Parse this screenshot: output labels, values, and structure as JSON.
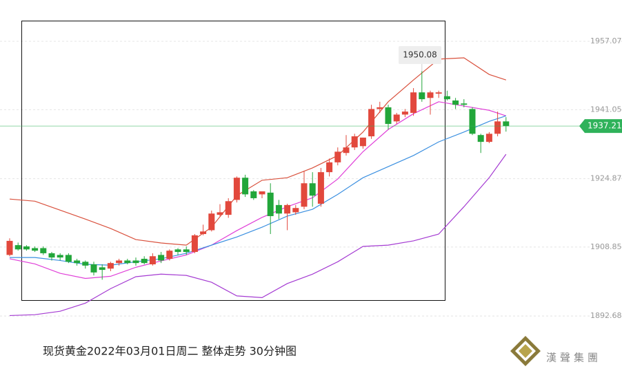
{
  "chart_data": {
    "type": "candlestick",
    "caption": "现货黄金2022年03月01日周二 整体走势  30分钟图",
    "logo_text": "漢聲集團",
    "categories": [
      null,
      null,
      null,
      null,
      null,
      null,
      null,
      null,
      null,
      null,
      null,
      null,
      null,
      null,
      null,
      null,
      null,
      null,
      null,
      null,
      null,
      null,
      null,
      null,
      null,
      null,
      null,
      null,
      null,
      null,
      null,
      null,
      null,
      null,
      null,
      null,
      null,
      null,
      null,
      null,
      null,
      null,
      null,
      null,
      null,
      null,
      null,
      null,
      null,
      null,
      null,
      null,
      null,
      null,
      null,
      null,
      null,
      null,
      null,
      null
    ],
    "open": [
      1907.0,
      1909.3,
      1909.0,
      1908.6,
      1908.6,
      1907.4,
      1907.0,
      1907.0,
      1905.7,
      1905.4,
      1904.8,
      1904.1,
      1903.8,
      1905.1,
      1905.7,
      1905.7,
      1906.1,
      1904.8,
      1907.0,
      1906.1,
      1908.3,
      1908.3,
      1907.7,
      1911.9,
      1912.8,
      1916.4,
      1916.4,
      1919.9,
      1925.1,
      1921.9,
      1921.2,
      1921.6,
      1918.7,
      1916.7,
      1917.0,
      1918.3,
      1923.8,
      1919.0,
      1926.4,
      1928.7,
      1930.9,
      1932.2,
      1932.5,
      1934.8,
      1941.2,
      1941.6,
      1938.3,
      1939.9,
      1940.3,
      1945.1,
      1943.8,
      1944.8,
      1944.2,
      1943.2,
      1942.5,
      1941.2,
      1935.1,
      1933.5,
      1935.4,
      1938.3
    ],
    "high": [
      1910.9,
      1909.9,
      1909.3,
      1909.0,
      1909.0,
      1907.7,
      1907.4,
      1907.4,
      1906.1,
      1905.7,
      1905.4,
      1904.8,
      1905.4,
      1906.1,
      1906.1,
      1906.4,
      1906.7,
      1907.4,
      1907.7,
      1908.3,
      1908.6,
      1909.0,
      1911.9,
      1914.1,
      1917.4,
      1918.9,
      1920.3,
      1925.4,
      1925.8,
      1922.2,
      1921.9,
      1923.8,
      1919.9,
      1919.0,
      1918.7,
      1926.7,
      1926.4,
      1927.4,
      1929.6,
      1932.2,
      1935.1,
      1935.4,
      1934.5,
      1942.2,
      1942.9,
      1942.2,
      1940.3,
      1941.2,
      1946.1,
      1950.08,
      1945.5,
      1945.5,
      1945.5,
      1943.8,
      1943.5,
      1941.6,
      1935.4,
      1935.8,
      1940.6,
      1939.3
    ],
    "low": [
      1906.7,
      1908.0,
      1908.0,
      1907.7,
      1907.0,
      1905.7,
      1905.7,
      1905.1,
      1904.5,
      1903.8,
      1902.2,
      1901.2,
      1903.2,
      1904.5,
      1904.8,
      1904.5,
      1904.8,
      1904.5,
      1905.1,
      1905.7,
      1907.0,
      1907.0,
      1907.4,
      1911.6,
      1912.5,
      1916.1,
      1915.7,
      1919.3,
      1920.6,
      1919.9,
      1920.3,
      1911.9,
      1915.4,
      1912.8,
      1916.4,
      1917.7,
      1918.3,
      1918.3,
      1925.4,
      1928.0,
      1930.3,
      1931.6,
      1931.9,
      1934.2,
      1940.3,
      1936.4,
      1937.7,
      1939.3,
      1939.6,
      1942.9,
      1939.9,
      1943.8,
      1943.2,
      1941.2,
      1941.6,
      1935.1,
      1930.9,
      1933.2,
      1934.8,
      1935.9
    ],
    "close": [
      1910.3,
      1908.3,
      1908.3,
      1908.0,
      1907.4,
      1906.4,
      1906.4,
      1905.4,
      1905.1,
      1904.5,
      1902.9,
      1903.5,
      1905.1,
      1905.7,
      1905.1,
      1905.1,
      1905.1,
      1906.7,
      1905.7,
      1908.0,
      1907.7,
      1907.7,
      1911.6,
      1912.5,
      1916.7,
      1917.0,
      1919.6,
      1925.1,
      1921.2,
      1920.3,
      1921.9,
      1916.1,
      1916.7,
      1918.7,
      1918.0,
      1923.8,
      1920.9,
      1926.4,
      1928.7,
      1931.2,
      1932.2,
      1934.8,
      1934.5,
      1941.2,
      1941.6,
      1937.7,
      1939.9,
      1940.6,
      1945.1,
      1943.5,
      1945.1,
      1945.1,
      1943.5,
      1942.2,
      1942.2,
      1935.4,
      1933.5,
      1935.4,
      1938.3,
      1937.2
    ],
    "up_color": "#e2483c",
    "down_color": "#22a63a",
    "lines": [
      {
        "color": "#d9503c",
        "x": [
          0,
          3,
          6,
          9,
          12,
          15,
          18,
          21,
          24,
          27,
          30,
          33,
          36,
          39,
          42,
          45,
          48,
          51,
          54,
          57,
          59
        ],
        "values": [
          1920.1,
          1919.6,
          1917.5,
          1915.4,
          1913.2,
          1910.6,
          1909.8,
          1909.3,
          1913.5,
          1920.9,
          1924.5,
          1925.1,
          1927.4,
          1930.3,
          1935.8,
          1942.9,
          1948.0,
          1952.9,
          1953.2,
          1949.3,
          1948.0
        ]
      },
      {
        "color": "#a43ad2",
        "x": [
          0,
          3,
          6,
          9,
          12,
          15,
          18,
          21,
          24,
          27,
          30,
          33,
          36,
          39,
          42,
          45,
          48,
          51,
          54,
          57,
          59
        ],
        "values": [
          1892.8,
          1893.0,
          1893.8,
          1895.7,
          1899.1,
          1901.9,
          1902.5,
          1902.2,
          1900.6,
          1897.4,
          1897.0,
          1900.3,
          1902.5,
          1905.4,
          1909.0,
          1909.3,
          1910.3,
          1911.9,
          1918.3,
          1925.1,
          1930.6
        ]
      },
      {
        "color": "#e03fd8",
        "x": [
          0,
          3,
          6,
          9,
          12,
          15,
          18,
          21,
          24,
          27,
          30,
          33,
          36,
          39,
          42,
          45,
          48,
          51,
          54,
          57,
          59
        ],
        "values": [
          1906.1,
          1904.9,
          1902.7,
          1901.5,
          1902.0,
          1904.1,
          1905.6,
          1907.0,
          1909.3,
          1912.7,
          1915.8,
          1918.3,
          1920.4,
          1924.8,
          1931.2,
          1936.4,
          1940.1,
          1942.9,
          1941.9,
          1940.9,
          1939.6
        ]
      },
      {
        "color": "#3a8fe0",
        "x": [
          0,
          3,
          6,
          9,
          12,
          15,
          18,
          21,
          24,
          27,
          30,
          33,
          36,
          39,
          42,
          45,
          48,
          51,
          54,
          57,
          59
        ],
        "values": [
          1906.4,
          1906.4,
          1905.7,
          1904.8,
          1904.6,
          1905.4,
          1906.1,
          1907.4,
          1909.3,
          1911.2,
          1913.5,
          1916.1,
          1917.7,
          1921.2,
          1925.1,
          1927.7,
          1930.3,
          1933.5,
          1935.8,
          1938.3,
          1939.6
        ]
      }
    ],
    "ylim": [
      1879.8,
      1966.75
    ],
    "yticks": [
      1957.07,
      1941.05,
      1924.87,
      1908.85,
      1892.68
    ],
    "grid": true,
    "last_price": 1937.21,
    "last_price_color": "#2fb25a",
    "high_annotation_index": 49
  }
}
